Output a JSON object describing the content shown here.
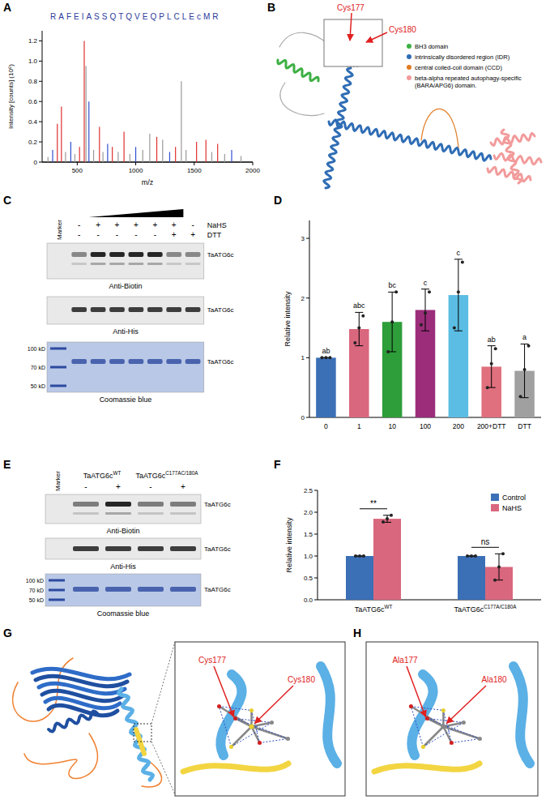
{
  "chart_data": [
    {
      "letter": "A",
      "type": "stem",
      "title": "RAFEIASSQTQVEQPLCLEcMR",
      "x_label": "m/z",
      "y_label": "Intensity [counts] (10⁶)",
      "x": [
        250,
        290,
        330,
        365,
        400,
        445,
        480,
        520,
        560,
        575,
        600,
        640,
        690,
        720,
        760,
        800,
        850,
        900,
        950,
        1000,
        1060,
        1120,
        1180,
        1230,
        1290,
        1340,
        1390,
        1430,
        1520,
        1600,
        1650,
        1700,
        1760,
        1820,
        1900
      ],
      "values": [
        0.05,
        0.12,
        0.38,
        0.55,
        0.1,
        0.2,
        0.08,
        0.15,
        1.2,
        0.95,
        0.6,
        0.12,
        0.35,
        0.1,
        0.18,
        0.15,
        0.1,
        0.3,
        0.08,
        0.15,
        0.12,
        0.28,
        0.25,
        0.22,
        0.1,
        0.15,
        0.8,
        0.12,
        0.2,
        0.22,
        0.1,
        0.18,
        0.08,
        0.12,
        0.06
      ],
      "colors": [
        "#999999",
        "#3050d0",
        "#e03030",
        "#e03030",
        "#999999",
        "#3050d0",
        "#999999",
        "#e03030",
        "#e03030",
        "#999999",
        "#3050d0",
        "#999999",
        "#e03030",
        "#999999",
        "#3050d0",
        "#e03030",
        "#999999",
        "#e03030",
        "#999999",
        "#3050d0",
        "#999999",
        "#999999",
        "#e03030",
        "#999999",
        "#3050d0",
        "#e03030",
        "#999999",
        "#999999",
        "#e03030",
        "#e03030",
        "#999999",
        "#e03030",
        "#999999",
        "#3050d0",
        "#999999"
      ],
      "xlim": [
        200,
        2000
      ],
      "xticks": [
        500,
        1000,
        1500,
        2000
      ],
      "ylim": [
        0,
        1.3
      ],
      "yticks": [
        0,
        0.2,
        0.4,
        0.6,
        0.8,
        {
          "value": 1,
          "label": "1.0"
        },
        1.2
      ]
    },
    {
      "letter": "D",
      "type": "bar",
      "y_label": "Relative intensity",
      "categories": [
        "0",
        "1",
        "10",
        "100",
        "200",
        "200+DTT",
        "DTT"
      ],
      "values": [
        1,
        1.48,
        1.6,
        1.8,
        2.05,
        0.85,
        0.78
      ],
      "errors": [
        0,
        0.28,
        0.5,
        0.35,
        0.6,
        0.35,
        0.45
      ],
      "points": [
        [
          1,
          1,
          1
        ],
        [
          1.25,
          1.5,
          1.7
        ],
        [
          1.1,
          1.6,
          2.1
        ],
        [
          1.55,
          1.75,
          2.1
        ],
        [
          1.5,
          2.1,
          2.6
        ],
        [
          0.5,
          0.9,
          1.15
        ],
        [
          0.35,
          0.8,
          1.2
        ]
      ],
      "letters": [
        "ab",
        "abc",
        "bc",
        "c",
        "c",
        "ab",
        "a"
      ],
      "colors": [
        "#3b6fb6",
        "#d9677e",
        "#2e9e3a",
        "#9b2d7a",
        "#5bbde3",
        "#e0707e",
        "#a0a0a0"
      ],
      "ylim": [
        0,
        3.3
      ],
      "yticks": [
        0,
        1,
        2,
        3
      ]
    },
    {
      "letter": "F",
      "type": "bar",
      "y_label": "Relative intensity",
      "categories": [
        "TaATG6c",
        "TaATG6c"
      ],
      "category_superscripts": [
        "WT",
        "C177A/C180A"
      ],
      "series": [
        {
          "name": "Control",
          "color": "#3b6fb6",
          "values": [
            1,
            1
          ],
          "errors": [
            0,
            0
          ],
          "points": [
            [
              1,
              1,
              1
            ],
            [
              1,
              1,
              1
            ]
          ]
        },
        {
          "name": "NaHS",
          "color": "#d9677e",
          "values": [
            1.85,
            0.75
          ],
          "errors": [
            0.08,
            0.3
          ],
          "points": [
            [
              1.78,
              1.85,
              1.93
            ],
            [
              0.45,
              0.75,
              1.05
            ]
          ]
        }
      ],
      "significance": [
        "**",
        "ns"
      ],
      "legend": "upper right",
      "ylim": [
        0,
        2.5
      ],
      "yticks": [
        {
          "value": 0,
          "label": "0.0"
        },
        0.5,
        {
          "value": 1,
          "label": "1.0"
        },
        1.5,
        {
          "value": 2,
          "label": "2.0"
        },
        2.5
      ]
    }
  ],
  "panel_B": {
    "letter": "B",
    "labels": [
      "Cys177",
      "Cys180"
    ],
    "legend": [
      {
        "label": "BH3 domain",
        "color": "#3cb043"
      },
      {
        "label": "intrinsically disordered region (IDR)",
        "color": "#2f6db5"
      },
      {
        "label": "central coiled-coil domain (CCD)",
        "color": "#e07b22"
      },
      {
        "label": "beta-alpha repeated autophagy-specific (BARA/APG6) domain.",
        "color": "#f29b9b"
      }
    ]
  },
  "panel_C": {
    "letter": "C",
    "marker_label": "Marker",
    "rows": [
      {
        "label": "NaHS",
        "signs": [
          "-",
          "+",
          "+",
          "+",
          "+",
          "+",
          "-"
        ]
      },
      {
        "label": "DTT",
        "signs": [
          "-",
          "-",
          "-",
          "-",
          "-",
          "+",
          "+"
        ]
      }
    ],
    "blots": [
      "Anti-Biotin",
      "Anti-His",
      "Coomassie blue"
    ],
    "band_label": "TaATG6c",
    "marker_sizes": [
      "100 kD",
      "70 kD",
      "50 kD"
    ]
  },
  "panel_E": {
    "letter": "E",
    "marker_label": "Marker",
    "groups": [
      {
        "base": "TaATG6c",
        "sup": "WT"
      },
      {
        "base": "TaATG6c",
        "sup": "C177AC/180A"
      }
    ],
    "signs": [
      "-",
      "+",
      "-",
      "+"
    ],
    "blots": [
      "Anti-Biotin",
      "Anti-His",
      "Coomassie blue"
    ],
    "band_label": "TaATG6c",
    "marker_sizes": [
      "100 kD",
      "70 kD",
      "50 kD"
    ]
  },
  "panel_G": {
    "letter": "G",
    "labels": [
      "Cys177",
      "Cys180"
    ]
  },
  "panel_H": {
    "letter": "H",
    "labels": [
      "Ala177",
      "Ala180"
    ]
  }
}
